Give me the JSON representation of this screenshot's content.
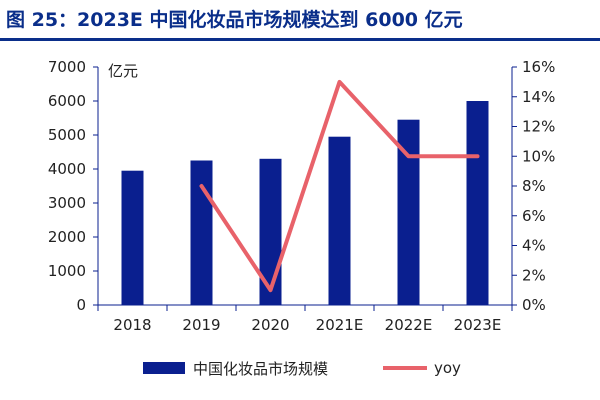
{
  "title": "图 25：2023E 中国化妆品市场规模达到 6000 亿元",
  "colors": {
    "title": "#0a2e8a",
    "bar": "#0a1f8f",
    "line": "#e8626a",
    "axis": "#0a1f8f"
  },
  "chart_data": {
    "type": "bar+line",
    "categories": [
      "2018",
      "2019",
      "2020",
      "2021E",
      "2022E",
      "2023E"
    ],
    "unit_label": "亿元",
    "left_axis": {
      "ylim": [
        0,
        7000
      ],
      "ticks": [
        "0",
        "1000",
        "2000",
        "3000",
        "4000",
        "5000",
        "6000",
        "7000"
      ]
    },
    "right_axis": {
      "ylim": [
        0,
        16
      ],
      "ticks": [
        "0%",
        "2%",
        "4%",
        "6%",
        "8%",
        "10%",
        "12%",
        "14%",
        "16%"
      ]
    },
    "series": [
      {
        "name": "中国化妆品市场规模",
        "type": "bar",
        "axis": "left",
        "values": [
          3950,
          4250,
          4300,
          4950,
          5450,
          6000
        ]
      },
      {
        "name": "yoy",
        "type": "line",
        "axis": "right",
        "values": [
          null,
          8,
          1,
          15,
          10,
          10
        ]
      }
    ],
    "legend": "bottom",
    "grid": false
  }
}
